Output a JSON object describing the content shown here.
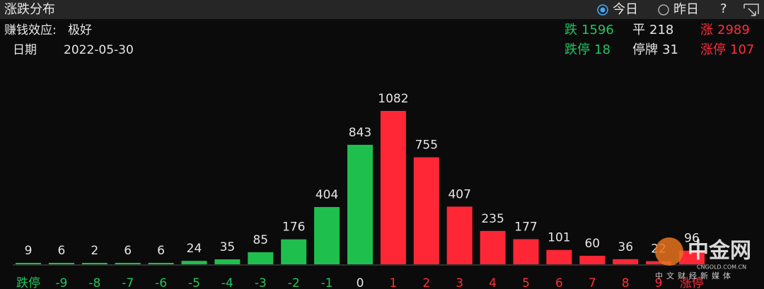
{
  "header": {
    "title": "涨跌分布",
    "options": [
      "今日",
      "昨日"
    ],
    "help": "?"
  },
  "effect": {
    "label": "赚钱效应:",
    "value": "极好"
  },
  "date": {
    "label": "日期",
    "value": "2022-05-30"
  },
  "stats": [
    {
      "label": "跌",
      "value": 1596,
      "color": "#22c55e"
    },
    {
      "label": "平",
      "value": 218,
      "color": "#e6e6e6"
    },
    {
      "label": "涨",
      "value": 2989,
      "color": "#ff2d3a"
    },
    {
      "label": "跌停",
      "value": 18,
      "color": "#22c55e"
    },
    {
      "label": "停牌",
      "value": 31,
      "color": "#e6e6e6"
    },
    {
      "label": "涨停",
      "value": 107,
      "color": "#ff2d3a"
    }
  ],
  "chart_data": {
    "type": "bar",
    "categories": [
      "跌停",
      "-9",
      "-8",
      "-7",
      "-6",
      "-5",
      "-4",
      "-3",
      "-2",
      "-1",
      "0",
      "1",
      "2",
      "3",
      "4",
      "5",
      "6",
      "7",
      "8",
      "9",
      "涨停"
    ],
    "values": [
      9,
      6,
      2,
      6,
      6,
      24,
      35,
      85,
      176,
      404,
      843,
      1082,
      755,
      407,
      235,
      177,
      101,
      60,
      36,
      22,
      96
    ],
    "colors": [
      "#1fbf4e",
      "#1fbf4e",
      "#1fbf4e",
      "#1fbf4e",
      "#1fbf4e",
      "#1fbf4e",
      "#1fbf4e",
      "#1fbf4e",
      "#1fbf4e",
      "#1fbf4e",
      "#1fbf4e",
      "#ff2736",
      "#ff2736",
      "#ff2736",
      "#ff2736",
      "#ff2736",
      "#ff2736",
      "#ff2736",
      "#ff2736",
      "#ff2736",
      "#ff2736"
    ],
    "label_colors": [
      "#22c55e",
      "#22c55e",
      "#22c55e",
      "#22c55e",
      "#22c55e",
      "#22c55e",
      "#22c55e",
      "#22c55e",
      "#22c55e",
      "#22c55e",
      "#e6e6e6",
      "#ff2d3a",
      "#ff2d3a",
      "#ff2d3a",
      "#ff2d3a",
      "#ff2d3a",
      "#ff2d3a",
      "#ff2d3a",
      "#ff2d3a",
      "#ff2d3a",
      "#ff2d3a"
    ]
  },
  "watermark": {
    "name": "中金网",
    "site": "CNGOLD.COM.CN",
    "slogan": "中文财经新媒体"
  }
}
